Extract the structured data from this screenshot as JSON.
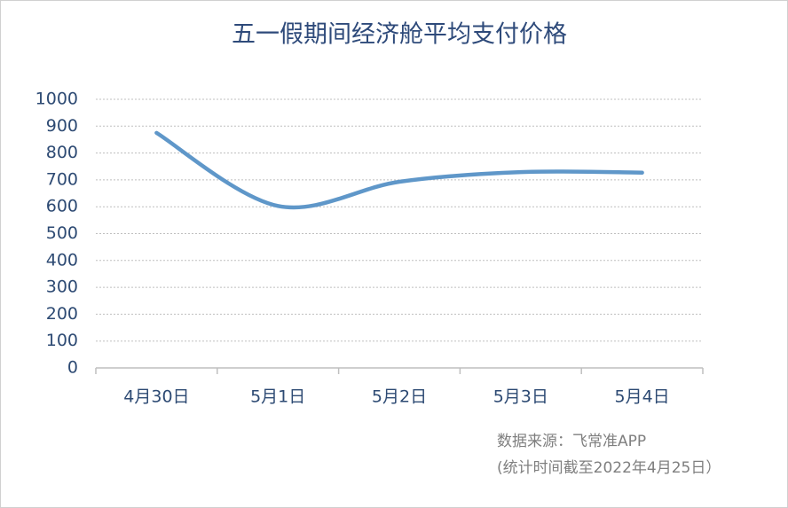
{
  "chart_data": {
    "type": "line",
    "title": "五一假期间经济舱平均支付价格",
    "categories": [
      "4月30日",
      "5月1日",
      "5月2日",
      "5月3日",
      "5月4日"
    ],
    "series": [
      {
        "name": "经济舱平均支付价格",
        "color": "#5f97c9",
        "values": [
          875,
          603,
          693,
          729,
          727
        ]
      }
    ],
    "ylim": [
      0,
      1000
    ],
    "yticks": [
      0,
      100,
      200,
      300,
      400,
      500,
      600,
      700,
      800,
      900,
      1000
    ],
    "grid": true,
    "smooth": true,
    "annotations": [
      "数据来源：飞常准APP",
      "(统计时间截至2022年4月25日）"
    ]
  }
}
